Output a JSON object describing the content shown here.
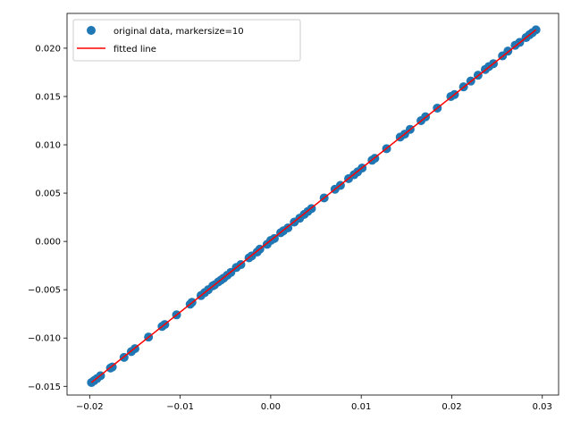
{
  "chart_data": {
    "type": "scatter",
    "title": "",
    "xlabel": "",
    "ylabel": "",
    "xlim": [
      -0.0225,
      0.0318
    ],
    "ylim": [
      -0.0159,
      0.0236
    ],
    "grid": false,
    "legend_position": "top-left",
    "xticks": [
      -0.02,
      -0.01,
      0.0,
      0.01,
      0.02,
      0.03
    ],
    "xtick_labels": [
      "−0.02",
      "−0.01",
      "0.00",
      "0.01",
      "0.02",
      "0.03"
    ],
    "yticks": [
      -0.015,
      -0.01,
      -0.005,
      0.0,
      0.005,
      0.01,
      0.015,
      0.02
    ],
    "ytick_labels": [
      "−0.015",
      "−0.010",
      "−0.005",
      "0.000",
      "0.005",
      "0.010",
      "0.015",
      "0.020"
    ],
    "series": [
      {
        "name": "original data, markersize=10",
        "kind": "points",
        "color": "#1f77b4",
        "x": [
          -0.0198,
          -0.0195,
          -0.0192,
          -0.0188,
          -0.0177,
          -0.0175,
          -0.0162,
          -0.0154,
          -0.015,
          -0.0135,
          -0.012,
          -0.0117,
          -0.0104,
          -0.0089,
          -0.0087,
          -0.0077,
          -0.0073,
          -0.0069,
          -0.0064,
          -0.0062,
          -0.0058,
          -0.0055,
          -0.0052,
          -0.0048,
          -0.0044,
          -0.0038,
          -0.0033,
          -0.0024,
          -0.0021,
          -0.0015,
          -0.0012,
          -0.0004,
          0.0,
          0.0004,
          0.0011,
          0.0014,
          0.0019,
          0.0026,
          0.0032,
          0.0037,
          0.0041,
          0.0045,
          0.0059,
          0.0071,
          0.0077,
          0.0086,
          0.0092,
          0.0096,
          0.0101,
          0.0112,
          0.0115,
          0.0128,
          0.0143,
          0.0148,
          0.0154,
          0.0166,
          0.0171,
          0.0184,
          0.0199,
          0.0203,
          0.0213,
          0.0221,
          0.0229,
          0.0237,
          0.0241,
          0.0246,
          0.0256,
          0.0262,
          0.027,
          0.0275,
          0.0282,
          0.0286,
          0.0289,
          0.0293
        ],
        "y": [
          -0.0146,
          -0.0144,
          -0.0142,
          -0.0139,
          -0.0131,
          -0.013,
          -0.012,
          -0.0114,
          -0.0111,
          -0.0099,
          -0.0088,
          -0.0086,
          -0.0076,
          -0.0065,
          -0.0063,
          -0.0056,
          -0.0053,
          -0.005,
          -0.0046,
          -0.0045,
          -0.0042,
          -0.004,
          -0.0038,
          -0.0035,
          -0.0032,
          -0.0027,
          -0.0024,
          -0.0017,
          -0.0015,
          -0.0011,
          -0.0008,
          -0.0003,
          0.0001,
          0.0003,
          0.0009,
          0.0011,
          0.0014,
          0.002,
          0.0024,
          0.0028,
          0.0031,
          0.0034,
          0.0045,
          0.0054,
          0.0058,
          0.0065,
          0.0069,
          0.0072,
          0.0076,
          0.0084,
          0.0086,
          0.0096,
          0.0108,
          0.0111,
          0.0116,
          0.0125,
          0.0129,
          0.0138,
          0.015,
          0.0152,
          0.016,
          0.0166,
          0.0172,
          0.0178,
          0.0181,
          0.0184,
          0.0192,
          0.0197,
          0.0203,
          0.0206,
          0.0211,
          0.0214,
          0.0216,
          0.0219
        ]
      },
      {
        "name": "fitted line",
        "kind": "line",
        "color": "#ff0000",
        "x": [
          -0.0198,
          0.0293
        ],
        "y": [
          -0.0146,
          0.0219
        ]
      }
    ]
  }
}
